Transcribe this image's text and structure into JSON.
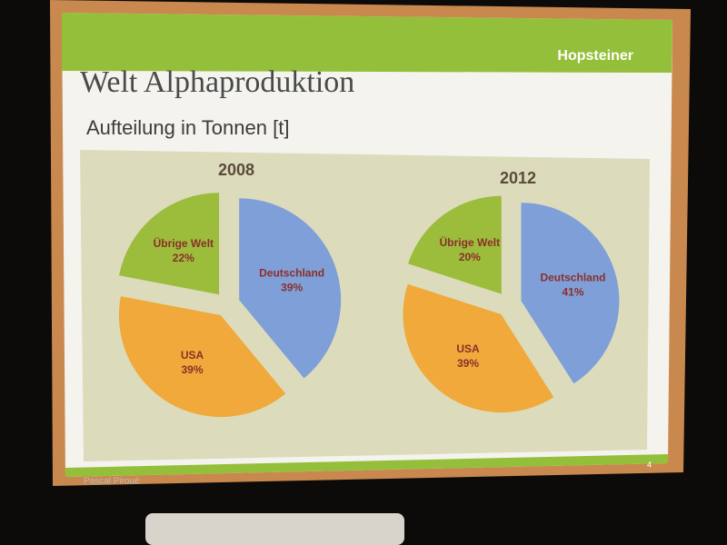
{
  "slide": {
    "title": "Welt Alphaproduktion",
    "subtitle": "Aufteilung in Tonnen [t]",
    "logo": "Hopsteiner",
    "footer": "Pascal Piroué",
    "page": "4"
  },
  "chart_data": [
    {
      "type": "pie",
      "title": "2008",
      "categories": [
        "Deutschland",
        "USA",
        "Übrige Welt"
      ],
      "values": [
        39,
        39,
        22
      ],
      "value_labels": [
        "39%",
        "39%",
        "22%"
      ],
      "colors": [
        "#7f9fd8",
        "#f0a93a",
        "#9cbc3c"
      ]
    },
    {
      "type": "pie",
      "title": "2012",
      "categories": [
        "Deutschland",
        "USA",
        "Übrige Welt"
      ],
      "values": [
        41,
        39,
        20
      ],
      "value_labels": [
        "41%",
        "39%",
        "20%"
      ],
      "colors": [
        "#7f9fd8",
        "#f0a93a",
        "#9cbc3c"
      ]
    }
  ]
}
